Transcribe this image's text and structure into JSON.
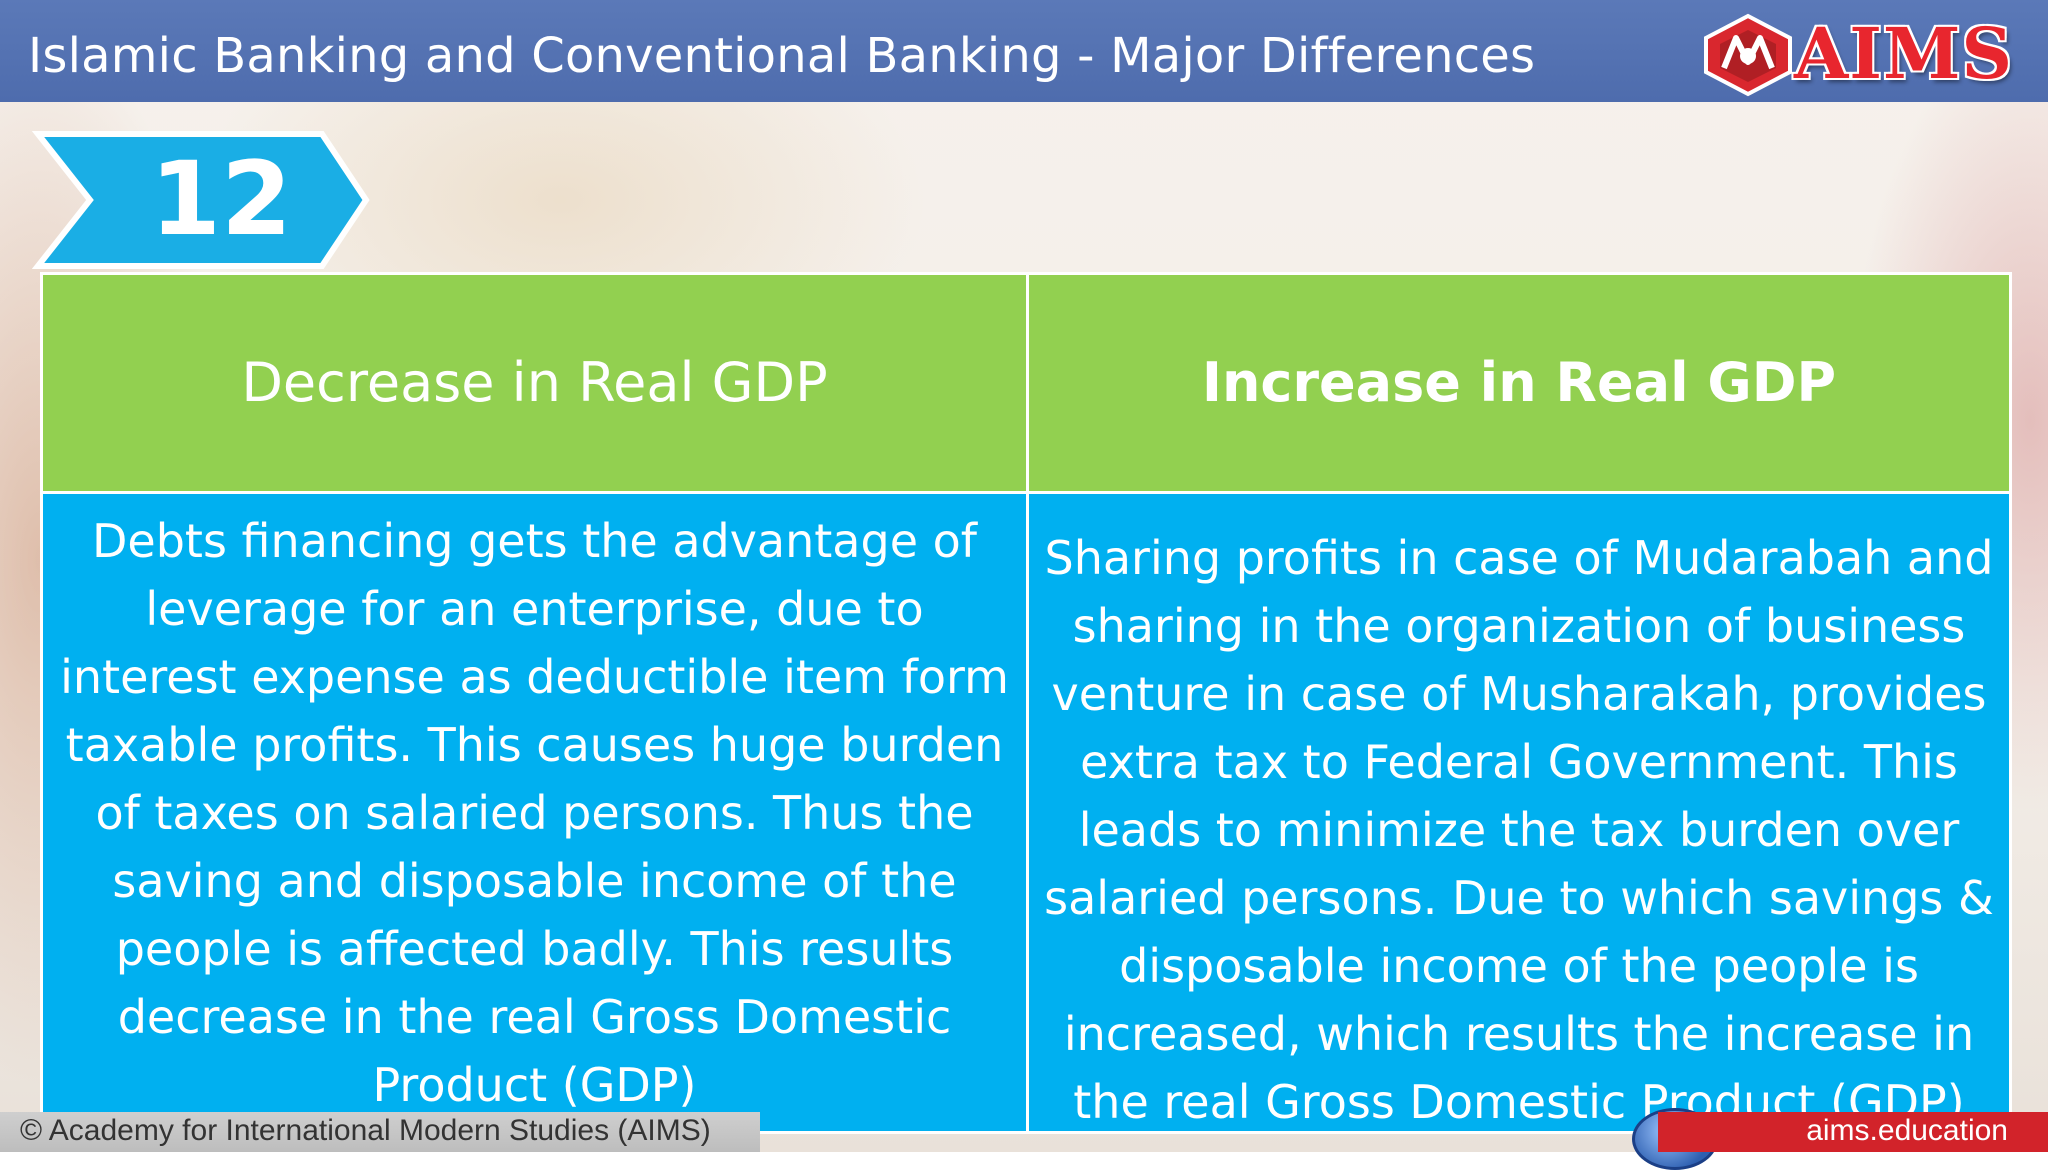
{
  "header": {
    "title": "Islamic Banking and Conventional Banking - Major Differences"
  },
  "logo": {
    "text": "AIMS",
    "emblem": "aims-emblem"
  },
  "badge": {
    "number": "12"
  },
  "table": {
    "headers": [
      "Decrease in Real GDP",
      "Increase in Real GDP"
    ],
    "rows": [
      [
        "Debts financing gets the advantage of leverage for an enterprise, due to interest expense as deductible item form taxable profits. This causes huge burden of taxes on salaried persons. Thus the saving and disposable income of the people is affected badly. This results decrease in the real Gross Domestic Product (GDP)",
        "Sharing profits in case of Mudarabah and sharing in the organization of business venture in case of Musharakah, provides extra tax to Federal Government. This leads to minimize the tax burden over salaried persons. Due to which savings & disposable income of the people is increased, which results the increase in the real Gross Domestic Product (GDP)"
      ]
    ]
  },
  "footer": {
    "copyright": "© Academy for International Modern Studies (AIMS)",
    "site": "aims.education"
  },
  "colors": {
    "header_bg": "#4e6cad",
    "head_cell": "#92d050",
    "body_cell": "#00b0f0",
    "badge": "#1aaee5",
    "logo_red": "#e8262e"
  }
}
